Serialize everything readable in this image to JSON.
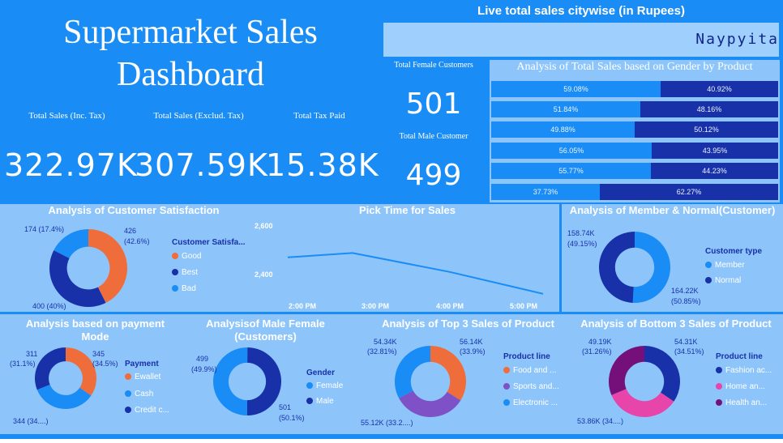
{
  "header": {
    "title_line1": "Supermarket Sales",
    "title_line2": "Dashboard",
    "live_title": "Live total sales citywise (in Rupees)",
    "ticker_text": "Naypyita"
  },
  "kpis": {
    "total_sales_inc_tax_label": "Total Sales (Inc. Tax)",
    "total_sales_inc_tax_value": "322.97K",
    "total_sales_excl_tax_label": "Total Sales (Exclud. Tax)",
    "total_sales_excl_tax_value": "307.59K",
    "total_tax_label": "Total Tax Paid",
    "total_tax_value": "15.38K"
  },
  "customers": {
    "female_label": "Total Female Customers",
    "female_value": "501",
    "male_label": "Total Male Customer",
    "male_value": "499"
  },
  "colors": {
    "primary": "#1a8cf5",
    "dark": "#1830a8",
    "orange": "#ef6d3b",
    "purple": "#7e52c6",
    "pink": "#e845ab",
    "maroon": "#75107a",
    "panel": "#8dc5fb"
  },
  "gender_by_product": {
    "title": "Analysis of Total Sales based on Gender by Product",
    "rows": [
      {
        "female": "59.08%",
        "male": "40.92%",
        "female_share": 0.5908
      },
      {
        "female": "51.84%",
        "male": "48.16%",
        "female_share": 0.5184
      },
      {
        "female": "49.88%",
        "male": "50.12%",
        "female_share": 0.4988
      },
      {
        "female": "56.05%",
        "male": "43.95%",
        "female_share": 0.5605
      },
      {
        "female": "55.77%",
        "male": "44.23%",
        "female_share": 0.5577
      },
      {
        "female": "37.73%",
        "male": "62.27%",
        "female_share": 0.3773
      }
    ]
  },
  "satisfaction": {
    "title": "Analysis of Customer Satisfaction",
    "legend_title": "Customer Satisfa...",
    "legend": [
      "Good",
      "Best",
      "Bad"
    ],
    "label_good": "426",
    "label_good_pct": "(42.6%)",
    "label_best": "400 (40%)",
    "label_bad": "174 (17.4%)",
    "values": [
      426,
      400,
      174
    ]
  },
  "pick_time": {
    "title": "Pick Time for Sales",
    "y_ticks": [
      "2,600",
      "2,400"
    ],
    "x_ticks": [
      "2:00 PM",
      "3:00 PM",
      "4:00 PM",
      "5:00 PM"
    ],
    "line_shape": [
      0.42,
      0.36,
      0.62,
      0.92
    ]
  },
  "member_normal": {
    "title": "Analysis of Member & Normal(Customer)",
    "legend_title": "Customer type",
    "legend": [
      "Member",
      "Normal"
    ],
    "label_normal": "158.74K",
    "label_normal_pct": "(49.15%)",
    "label_member": "164.22K",
    "label_member_pct": "(50.85%)",
    "values": [
      164.22,
      158.74
    ]
  },
  "payment": {
    "title_line1": "Analysis based on payment",
    "title_line2": "Mode",
    "legend_title": "Payment",
    "legend": [
      "Ewallet",
      "Cash",
      "Credit c..."
    ],
    "label_ewallet": "345",
    "label_ewallet_pct": "(34.5%)",
    "label_cash": "344 (34....)",
    "label_credit": "311",
    "label_credit_pct": "(31.1%)",
    "values": [
      345,
      344,
      311
    ]
  },
  "male_female": {
    "title_line1": "Analysisof Male Female",
    "title_line2": "(Customers)",
    "legend_title": "Gender",
    "legend": [
      "Female",
      "Male"
    ],
    "label_male": "499",
    "label_male_pct": "(49.9%)",
    "label_female": "501",
    "label_female_pct": "(50.1%)",
    "values": [
      501,
      499
    ]
  },
  "top3": {
    "title": "Analysis of Top 3 Sales of Product",
    "legend_title": "Product line",
    "legend": [
      "Food and ...",
      "Sports and...",
      "Electronic ..."
    ],
    "label_food": "56.14K",
    "label_food_pct": "(33.9%)",
    "label_sports": "55.12K (33.2....)",
    "label_electronic": "54.34K",
    "label_electronic_pct": "(32.81%)",
    "values": [
      56.14,
      55.12,
      54.34
    ]
  },
  "bottom3": {
    "title": "Analysis of Bottom 3 Sales of Product",
    "legend_title": "Product line",
    "legend": [
      "Fashion ac...",
      "Home an...",
      "Health an..."
    ],
    "label_fashion": "54.31K",
    "label_fashion_pct": "(34.51%)",
    "label_home": "53.86K (34....)",
    "label_health": "49.19K",
    "label_health_pct": "(31.26%)",
    "values": [
      54.31,
      53.86,
      49.19
    ]
  }
}
